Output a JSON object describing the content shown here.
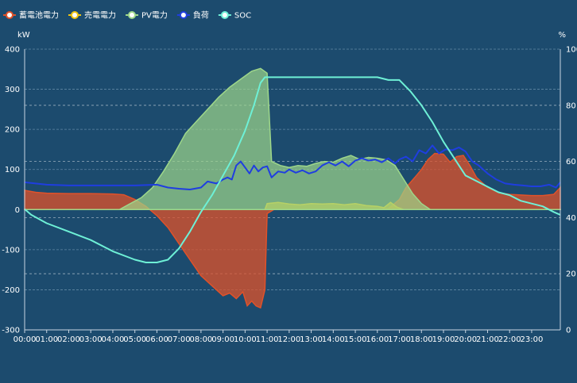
{
  "chart_data": {
    "type": "line",
    "title": "",
    "x_unit": "time of day",
    "categories": [
      "00:00",
      "01:00",
      "02:00",
      "03:00",
      "04:00",
      "05:00",
      "06:00",
      "07:00",
      "08:00",
      "09:00",
      "10:00",
      "11:00",
      "12:00",
      "13:00",
      "14:00",
      "15:00",
      "16:00",
      "17:00",
      "18:00",
      "19:00",
      "20:00",
      "21:00",
      "22:00",
      "23:00"
    ],
    "x_range": [
      0,
      24.3
    ],
    "y_left": {
      "unit": "kW",
      "range": [
        -300,
        400
      ],
      "ticks": [
        400,
        300,
        200,
        100,
        0,
        -100,
        -200,
        -300
      ]
    },
    "y_right": {
      "unit": "%",
      "range": [
        0,
        100
      ],
      "ticks": [
        100,
        80,
        60,
        40,
        20,
        0
      ]
    },
    "grid": true,
    "legend": {
      "placement": "top-left"
    },
    "series": [
      {
        "name": "蓄電池電力",
        "axis": "left",
        "style": "area",
        "color": "#e0522a",
        "points": [
          [
            0,
            48
          ],
          [
            0.5,
            43
          ],
          [
            1,
            41
          ],
          [
            2,
            40
          ],
          [
            3,
            40
          ],
          [
            4,
            39
          ],
          [
            4.5,
            37
          ],
          [
            5,
            25
          ],
          [
            5.5,
            8
          ],
          [
            6,
            -15
          ],
          [
            6.5,
            -45
          ],
          [
            7,
            -85
          ],
          [
            7.5,
            -125
          ],
          [
            8,
            -165
          ],
          [
            8.5,
            -190
          ],
          [
            9,
            -215
          ],
          [
            9.3,
            -208
          ],
          [
            9.6,
            -222
          ],
          [
            9.9,
            -205
          ],
          [
            10.1,
            -240
          ],
          [
            10.3,
            -228
          ],
          [
            10.5,
            -240
          ],
          [
            10.7,
            -245
          ],
          [
            10.9,
            -200
          ],
          [
            11,
            -10
          ],
          [
            11.3,
            0
          ],
          [
            12,
            0
          ],
          [
            14,
            0
          ],
          [
            16,
            0
          ],
          [
            16.5,
            2
          ],
          [
            17,
            25
          ],
          [
            17.3,
            55
          ],
          [
            17.7,
            80
          ],
          [
            18,
            100
          ],
          [
            18.3,
            125
          ],
          [
            18.6,
            140
          ],
          [
            19,
            138
          ],
          [
            19.3,
            118
          ],
          [
            19.6,
            132
          ],
          [
            19.9,
            135
          ],
          [
            20.2,
            110
          ],
          [
            20.5,
            80
          ],
          [
            21,
            55
          ],
          [
            21.5,
            42
          ],
          [
            22,
            38
          ],
          [
            23,
            35
          ],
          [
            23.5,
            35
          ],
          [
            24,
            38
          ],
          [
            24.3,
            55
          ]
        ]
      },
      {
        "name": "売電電力",
        "axis": "left",
        "style": "area",
        "color": "#f1c40f",
        "points": [
          [
            0,
            0
          ],
          [
            5,
            0
          ],
          [
            5.5,
            0
          ],
          [
            6,
            0
          ],
          [
            10.9,
            0
          ],
          [
            11,
            15
          ],
          [
            11.5,
            18
          ],
          [
            12,
            14
          ],
          [
            12.5,
            12
          ],
          [
            13,
            15
          ],
          [
            13.5,
            14
          ],
          [
            14,
            15
          ],
          [
            14.5,
            12
          ],
          [
            15,
            15
          ],
          [
            15.5,
            10
          ],
          [
            16,
            8
          ],
          [
            16.3,
            5
          ],
          [
            16.6,
            18
          ],
          [
            16.9,
            6
          ],
          [
            17.2,
            0
          ],
          [
            24.3,
            0
          ]
        ]
      },
      {
        "name": "PV電力",
        "axis": "left",
        "style": "area",
        "color": "#9ed78a",
        "points": [
          [
            0,
            0
          ],
          [
            4.3,
            0
          ],
          [
            4.8,
            15
          ],
          [
            5.3,
            30
          ],
          [
            5.8,
            55
          ],
          [
            6.3,
            95
          ],
          [
            6.8,
            140
          ],
          [
            7.3,
            190
          ],
          [
            7.8,
            220
          ],
          [
            8.3,
            250
          ],
          [
            8.8,
            280
          ],
          [
            9.3,
            305
          ],
          [
            9.8,
            325
          ],
          [
            10.3,
            345
          ],
          [
            10.7,
            352
          ],
          [
            11,
            340
          ],
          [
            11.2,
            120
          ],
          [
            11.6,
            110
          ],
          [
            12,
            105
          ],
          [
            12.4,
            110
          ],
          [
            12.8,
            108
          ],
          [
            13.2,
            115
          ],
          [
            13.6,
            120
          ],
          [
            14,
            118
          ],
          [
            14.4,
            128
          ],
          [
            14.8,
            135
          ],
          [
            15.2,
            125
          ],
          [
            15.6,
            130
          ],
          [
            16,
            128
          ],
          [
            16.4,
            124
          ],
          [
            16.8,
            110
          ],
          [
            17.2,
            75
          ],
          [
            17.6,
            40
          ],
          [
            18,
            15
          ],
          [
            18.4,
            0
          ],
          [
            24.3,
            0
          ]
        ]
      },
      {
        "name": "負荷",
        "axis": "left",
        "style": "line",
        "color": "#1f3ee0",
        "points": [
          [
            0,
            68
          ],
          [
            1,
            62
          ],
          [
            2,
            60
          ],
          [
            3,
            60
          ],
          [
            4,
            60
          ],
          [
            5,
            60
          ],
          [
            6,
            62
          ],
          [
            6.5,
            55
          ],
          [
            7,
            52
          ],
          [
            7.5,
            50
          ],
          [
            8,
            55
          ],
          [
            8.3,
            70
          ],
          [
            8.7,
            65
          ],
          [
            9,
            75
          ],
          [
            9.2,
            80
          ],
          [
            9.4,
            75
          ],
          [
            9.6,
            110
          ],
          [
            9.8,
            120
          ],
          [
            10,
            105
          ],
          [
            10.2,
            90
          ],
          [
            10.4,
            110
          ],
          [
            10.6,
            95
          ],
          [
            10.8,
            105
          ],
          [
            11,
            108
          ],
          [
            11.2,
            80
          ],
          [
            11.5,
            95
          ],
          [
            11.8,
            92
          ],
          [
            12,
            100
          ],
          [
            12.3,
            92
          ],
          [
            12.6,
            98
          ],
          [
            12.9,
            90
          ],
          [
            13.2,
            95
          ],
          [
            13.5,
            110
          ],
          [
            13.8,
            118
          ],
          [
            14.1,
            110
          ],
          [
            14.4,
            120
          ],
          [
            14.7,
            108
          ],
          [
            15,
            122
          ],
          [
            15.3,
            128
          ],
          [
            15.6,
            122
          ],
          [
            15.9,
            125
          ],
          [
            16.2,
            118
          ],
          [
            16.5,
            128
          ],
          [
            16.8,
            115
          ],
          [
            17,
            125
          ],
          [
            17.3,
            132
          ],
          [
            17.6,
            120
          ],
          [
            17.9,
            148
          ],
          [
            18.2,
            140
          ],
          [
            18.5,
            160
          ],
          [
            18.8,
            140
          ],
          [
            19.1,
            150
          ],
          [
            19.4,
            148
          ],
          [
            19.7,
            155
          ],
          [
            20,
            145
          ],
          [
            20.3,
            120
          ],
          [
            20.6,
            110
          ],
          [
            21,
            90
          ],
          [
            21.4,
            75
          ],
          [
            21.8,
            65
          ],
          [
            22.2,
            62
          ],
          [
            22.6,
            60
          ],
          [
            23,
            58
          ],
          [
            23.4,
            58
          ],
          [
            23.8,
            62
          ],
          [
            24.1,
            55
          ],
          [
            24.3,
            68
          ]
        ]
      },
      {
        "name": "SOC",
        "axis": "right",
        "style": "line",
        "color": "#6ef0d6",
        "points": [
          [
            0,
            43
          ],
          [
            0.3,
            41
          ],
          [
            1,
            38
          ],
          [
            2,
            35
          ],
          [
            3,
            32
          ],
          [
            4,
            28
          ],
          [
            5,
            25
          ],
          [
            5.5,
            24
          ],
          [
            6,
            24
          ],
          [
            6.5,
            25
          ],
          [
            7,
            29
          ],
          [
            7.5,
            35
          ],
          [
            8,
            42
          ],
          [
            8.5,
            48
          ],
          [
            9,
            55
          ],
          [
            9.5,
            62
          ],
          [
            10,
            71
          ],
          [
            10.4,
            80
          ],
          [
            10.7,
            88
          ],
          [
            10.9,
            90
          ],
          [
            11.1,
            90
          ],
          [
            12,
            90
          ],
          [
            13,
            90
          ],
          [
            14,
            90
          ],
          [
            15,
            90
          ],
          [
            16,
            90
          ],
          [
            16.5,
            89
          ],
          [
            17,
            89
          ],
          [
            17.5,
            85
          ],
          [
            18,
            80
          ],
          [
            18.5,
            74
          ],
          [
            19,
            67
          ],
          [
            19.5,
            61
          ],
          [
            20,
            55
          ],
          [
            20.5,
            53
          ],
          [
            21,
            51
          ],
          [
            21.5,
            49
          ],
          [
            22,
            48
          ],
          [
            22.5,
            46
          ],
          [
            23,
            45
          ],
          [
            23.5,
            44
          ],
          [
            24,
            42
          ],
          [
            24.3,
            41
          ]
        ]
      }
    ]
  }
}
